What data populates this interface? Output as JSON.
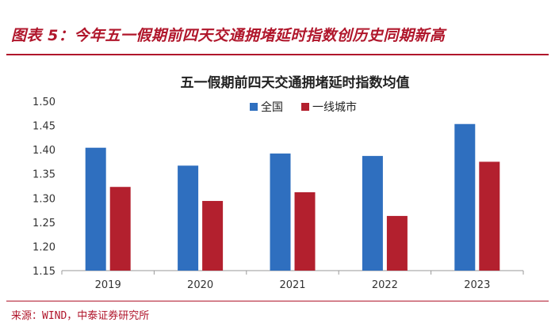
{
  "figure_title": "图表 5：今年五一假期前四天交通拥堵延时指数创历史同期新高",
  "source": "来源：WIND，中泰证券研究所",
  "colors": {
    "accent": "#b0162b",
    "series_1": "#2f6fbf",
    "series_2": "#b3202e"
  },
  "chart_data": {
    "type": "bar",
    "title": "五一假期前四天交通拥堵延时指数均值",
    "categories": [
      "2019",
      "2020",
      "2021",
      "2022",
      "2023"
    ],
    "series": [
      {
        "name": "全国",
        "values": [
          1.404,
          1.367,
          1.392,
          1.387,
          1.453
        ]
      },
      {
        "name": "一线城市",
        "values": [
          1.323,
          1.294,
          1.312,
          1.263,
          1.375
        ]
      }
    ],
    "yticks": [
      "1.15",
      "1.20",
      "1.25",
      "1.30",
      "1.35",
      "1.40",
      "1.45",
      "1.50"
    ],
    "ylim": [
      1.15,
      1.5
    ],
    "xlabel": "",
    "ylabel": "",
    "grid": false,
    "legend_position": "top-center"
  }
}
